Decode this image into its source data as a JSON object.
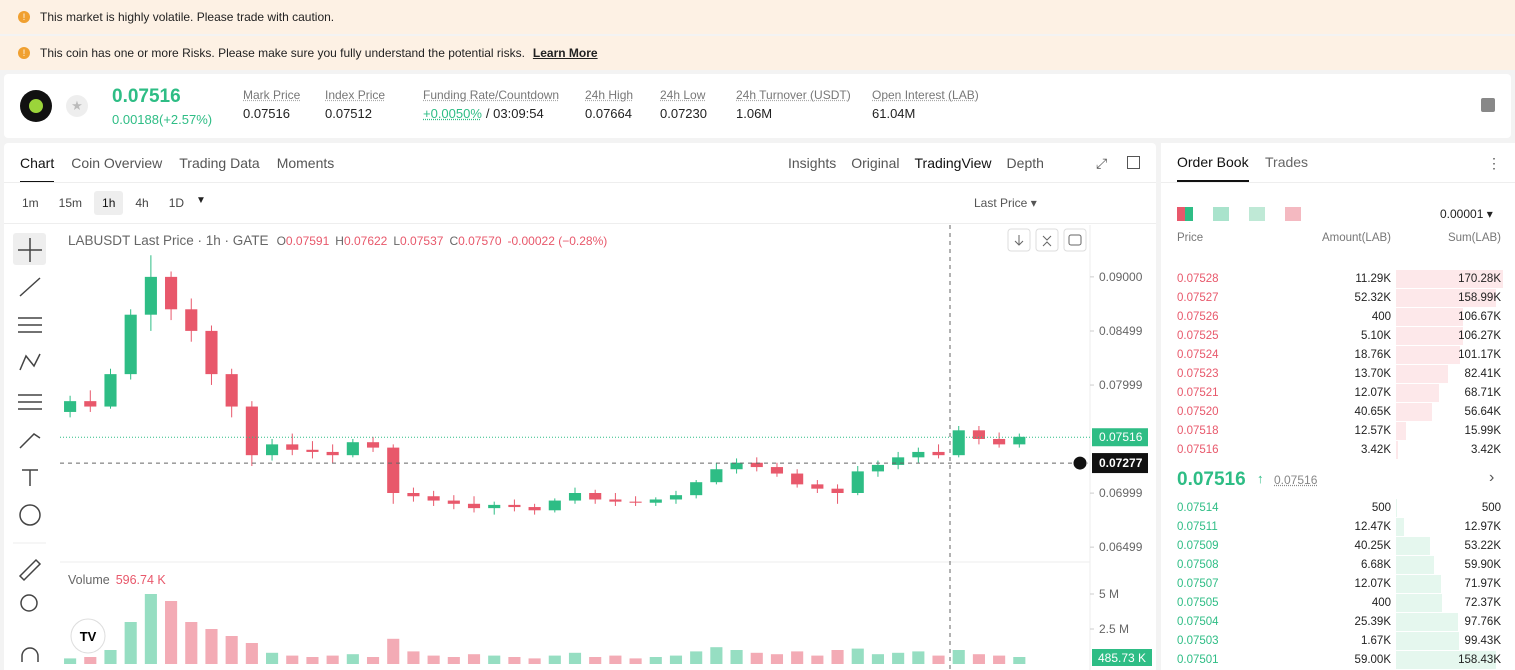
{
  "banners": {
    "items": [
      "This market is highly volatile. Please trade with caution.",
      "This coin has one or more Risks. Please make sure you fully understand the potential risks."
    ],
    "link": "Learn More"
  },
  "ticker": {
    "price": "0.07516",
    "change": "0.00188(+2.57%)",
    "stats": [
      {
        "label": "Mark Price",
        "value": "0.07516"
      },
      {
        "label": "Index Price",
        "value": "0.07512"
      },
      {
        "label": "Funding Rate/Countdown",
        "value": "+0.0050%",
        "extra": "/ 03:09:54"
      },
      {
        "label": "24h High",
        "value": "0.07664"
      },
      {
        "label": "24h Low",
        "value": "0.07230"
      },
      {
        "label": "24h Turnover (USDT)",
        "value": "1.06M"
      },
      {
        "label": "Open Interest (LAB)",
        "value": "61.04M"
      }
    ]
  },
  "tabs": [
    "Chart",
    "Coin Overview",
    "Trading Data",
    "Moments"
  ],
  "view_tabs": [
    "Insights",
    "Original",
    "TradingView",
    "Depth"
  ],
  "intervals": [
    "1m",
    "15m",
    "1h",
    "4h",
    "1D"
  ],
  "price_type": "Last Price",
  "chart_data": {
    "type": "candlestick",
    "title": "LABUSDT Last Price · 1h · GATE",
    "ohlc": [
      {
        "label": "O",
        "value": "0.07591"
      },
      {
        "label": "H",
        "value": "0.07622"
      },
      {
        "label": "L",
        "value": "0.07537"
      },
      {
        "label": "C",
        "value": "0.07570"
      }
    ],
    "change": "-0.00022 (−0.28%)",
    "up_color": "#2ebd85",
    "down_color": "#e8586b",
    "candles": [
      [
        0.0775,
        0.079,
        0.077,
        0.0785
      ],
      [
        0.0785,
        0.0795,
        0.0775,
        0.078
      ],
      [
        0.078,
        0.0815,
        0.0778,
        0.081
      ],
      [
        0.081,
        0.087,
        0.0805,
        0.0865
      ],
      [
        0.0865,
        0.092,
        0.085,
        0.09
      ],
      [
        0.09,
        0.0905,
        0.086,
        0.087
      ],
      [
        0.087,
        0.088,
        0.084,
        0.085
      ],
      [
        0.085,
        0.0855,
        0.08,
        0.081
      ],
      [
        0.081,
        0.0815,
        0.077,
        0.078
      ],
      [
        0.078,
        0.0785,
        0.0725,
        0.0735
      ],
      [
        0.0735,
        0.075,
        0.073,
        0.0745
      ],
      [
        0.0745,
        0.0755,
        0.0735,
        0.074
      ],
      [
        0.074,
        0.0748,
        0.0732,
        0.0738
      ],
      [
        0.0738,
        0.0745,
        0.0728,
        0.0735
      ],
      [
        0.0735,
        0.075,
        0.0733,
        0.0747
      ],
      [
        0.0747,
        0.0752,
        0.0738,
        0.0742
      ],
      [
        0.0742,
        0.0745,
        0.069,
        0.07
      ],
      [
        0.07,
        0.0705,
        0.0692,
        0.0697
      ],
      [
        0.0697,
        0.0702,
        0.0688,
        0.0693
      ],
      [
        0.0693,
        0.0698,
        0.0685,
        0.069
      ],
      [
        0.069,
        0.0697,
        0.0682,
        0.0686
      ],
      [
        0.0686,
        0.0692,
        0.068,
        0.0689
      ],
      [
        0.0689,
        0.0694,
        0.0683,
        0.0687
      ],
      [
        0.0687,
        0.069,
        0.068,
        0.0684
      ],
      [
        0.0684,
        0.0695,
        0.0682,
        0.0693
      ],
      [
        0.0693,
        0.0705,
        0.069,
        0.07
      ],
      [
        0.07,
        0.0703,
        0.069,
        0.0694
      ],
      [
        0.0694,
        0.07,
        0.0688,
        0.0692
      ],
      [
        0.0692,
        0.0697,
        0.0688,
        0.0691
      ],
      [
        0.0691,
        0.0696,
        0.0688,
        0.0694
      ],
      [
        0.0694,
        0.0702,
        0.069,
        0.0698
      ],
      [
        0.0698,
        0.0712,
        0.0695,
        0.071
      ],
      [
        0.071,
        0.0728,
        0.0708,
        0.0722
      ],
      [
        0.0722,
        0.0732,
        0.0718,
        0.0728
      ],
      [
        0.0728,
        0.0733,
        0.072,
        0.0724
      ],
      [
        0.0724,
        0.0728,
        0.0715,
        0.0718
      ],
      [
        0.0718,
        0.0722,
        0.0705,
        0.0708
      ],
      [
        0.0708,
        0.0712,
        0.07,
        0.0704
      ],
      [
        0.0704,
        0.0708,
        0.069,
        0.07
      ],
      [
        0.07,
        0.0725,
        0.0698,
        0.072
      ],
      [
        0.072,
        0.073,
        0.0715,
        0.0726
      ],
      [
        0.0726,
        0.0738,
        0.0722,
        0.0733
      ],
      [
        0.0733,
        0.0742,
        0.0728,
        0.0738
      ],
      [
        0.0738,
        0.0745,
        0.0732,
        0.0735
      ],
      [
        0.0735,
        0.0762,
        0.0733,
        0.0758
      ],
      [
        0.0758,
        0.0762,
        0.0745,
        0.075
      ],
      [
        0.075,
        0.0756,
        0.0742,
        0.0745
      ],
      [
        0.0745,
        0.0755,
        0.0742,
        0.0752
      ]
    ],
    "ylim": [
      0.0638,
      0.0948
    ],
    "yticks": [
      {
        "value": 0.09,
        "label": "0.09000"
      },
      {
        "value": 0.08499,
        "label": "0.08499"
      },
      {
        "value": 0.07999,
        "label": "0.07999"
      },
      {
        "value": 0.06999,
        "label": "0.06999"
      },
      {
        "value": 0.06499,
        "label": "0.06499"
      }
    ],
    "last_price": {
      "value": 0.07516,
      "label": "0.07516"
    },
    "crosshair": {
      "value": 0.07277,
      "label": "0.07277"
    },
    "volume_label": "Volume",
    "volume_value": "596.74 K",
    "volume_tag": "485.73 K",
    "volumes": [
      0.4,
      0.5,
      1.0,
      3.0,
      5.0,
      4.5,
      3.0,
      2.5,
      2.0,
      1.5,
      0.8,
      0.6,
      0.5,
      0.6,
      0.7,
      0.5,
      1.8,
      0.9,
      0.6,
      0.5,
      0.7,
      0.6,
      0.5,
      0.4,
      0.6,
      0.8,
      0.5,
      0.6,
      0.4,
      0.5,
      0.6,
      0.9,
      1.2,
      1.0,
      0.8,
      0.7,
      0.9,
      0.6,
      1.0,
      1.1,
      0.7,
      0.8,
      0.9,
      0.6,
      1.0,
      0.7,
      0.6,
      0.5
    ],
    "vticks": [
      {
        "value": 5,
        "label": "5 M"
      },
      {
        "value": 2.5,
        "label": "2.5 M"
      }
    ]
  },
  "order_book": {
    "tabs": [
      "Order Book",
      "Trades"
    ],
    "precision": "0.00001",
    "headers": [
      "Price",
      "Amount(LAB)",
      "Sum(LAB)"
    ],
    "asks": [
      [
        "0.07528",
        "11.29K",
        "170.28K"
      ],
      [
        "0.07527",
        "52.32K",
        "158.99K"
      ],
      [
        "0.07526",
        "400",
        "106.67K"
      ],
      [
        "0.07525",
        "5.10K",
        "106.27K"
      ],
      [
        "0.07524",
        "18.76K",
        "101.17K"
      ],
      [
        "0.07523",
        "13.70K",
        "82.41K"
      ],
      [
        "0.07521",
        "12.07K",
        "68.71K"
      ],
      [
        "0.07520",
        "40.65K",
        "56.64K"
      ],
      [
        "0.07518",
        "12.57K",
        "15.99K"
      ],
      [
        "0.07516",
        "3.42K",
        "3.42K"
      ]
    ],
    "mid_price": "0.07516",
    "mark_price": "0.07516",
    "bids": [
      [
        "0.07514",
        "500",
        "500"
      ],
      [
        "0.07511",
        "12.47K",
        "12.97K"
      ],
      [
        "0.07509",
        "40.25K",
        "53.22K"
      ],
      [
        "0.07508",
        "6.68K",
        "59.90K"
      ],
      [
        "0.07507",
        "12.07K",
        "71.97K"
      ],
      [
        "0.07505",
        "400",
        "72.37K"
      ],
      [
        "0.07504",
        "25.39K",
        "97.76K"
      ],
      [
        "0.07503",
        "1.67K",
        "99.43K"
      ],
      [
        "0.07501",
        "59.00K",
        "158.43K"
      ]
    ]
  }
}
